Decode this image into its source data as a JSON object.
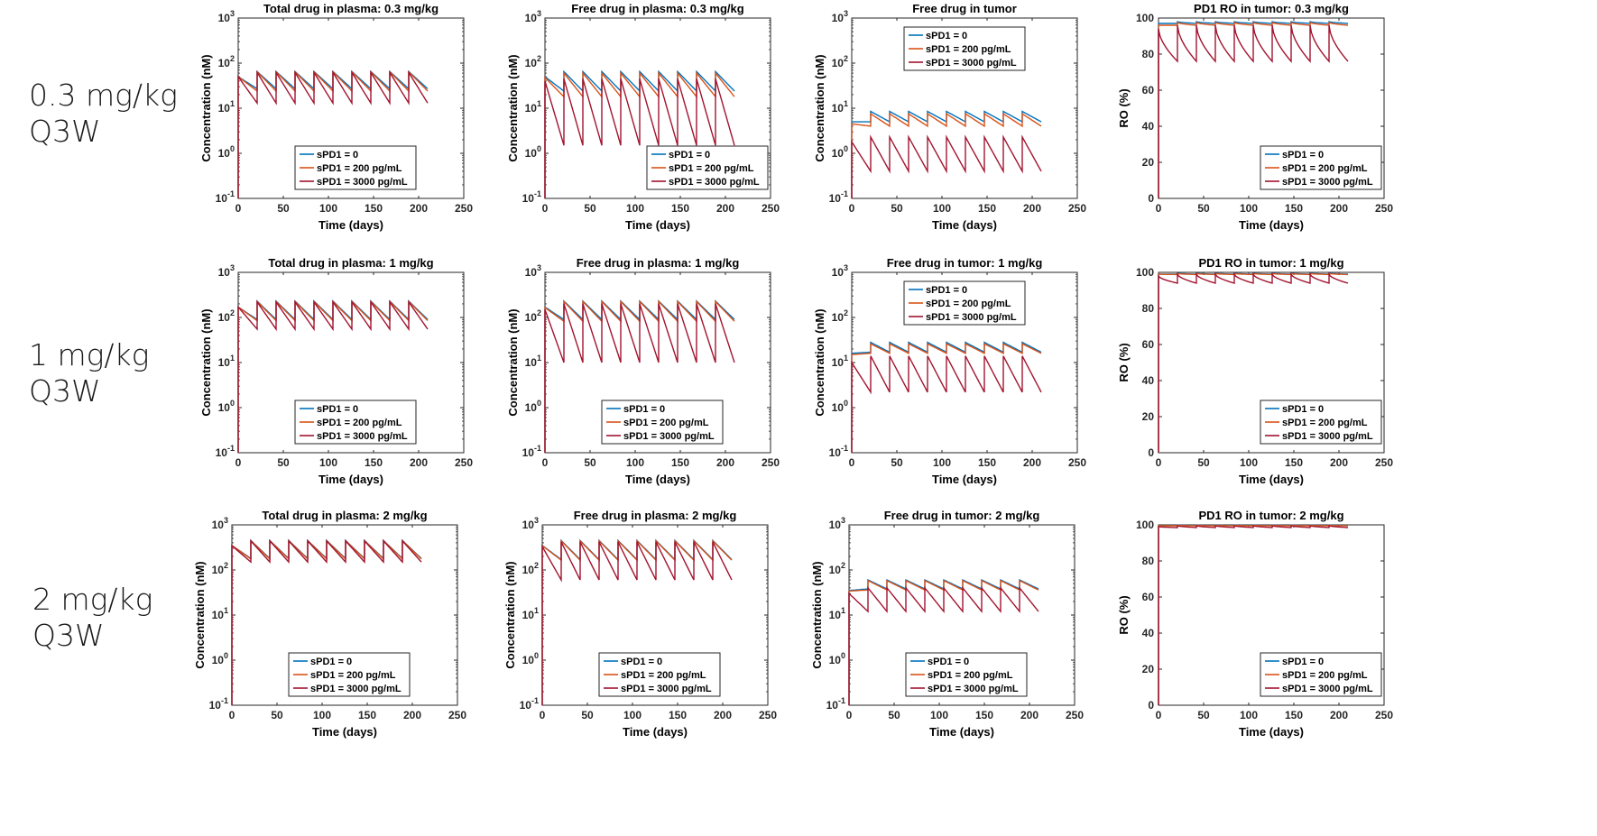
{
  "row_labels": [
    {
      "dose": "0.3 mg/kg",
      "schedule": "Q3W"
    },
    {
      "dose": "1 mg/kg",
      "schedule": "Q3W"
    },
    {
      "dose": "2 mg/kg",
      "schedule": "Q3W"
    }
  ],
  "colors": {
    "series0": "#0072BD",
    "series1": "#D95319",
    "series2": "#A2142F",
    "axis": "#262626"
  },
  "common": {
    "xlabel": "Time (days)",
    "xticks": [
      "0",
      "50",
      "100",
      "150",
      "200",
      "250"
    ],
    "conc_ylabel": "Concentration (nM)",
    "ro_ylabel": "RO (%)",
    "ro_yticks": [
      "0",
      "20",
      "40",
      "60",
      "80",
      "100"
    ],
    "log_ytick_base": "10",
    "log_ytick_exps": [
      "-1",
      "0",
      "1",
      "2",
      "3"
    ],
    "legend": [
      "sPD1 = 0",
      "sPD1 = 200 pg/mL",
      "sPD1 = 3000 pg/mL"
    ]
  },
  "chart_data": [
    {
      "type": "line",
      "title": "Total drug in plasma: 0.3 mg/kg",
      "xlabel": "Time (days)",
      "ylabel": "Concentration (nM)",
      "xlim": [
        0,
        250
      ],
      "ylim": [
        0.1,
        1000
      ],
      "yscale": "log",
      "legend_position": "lower-center",
      "dose_interval_days": 21,
      "end_day": 210,
      "series": [
        {
          "name": "sPD1 = 0",
          "peak": 65,
          "trough": 27,
          "first_peak": 50
        },
        {
          "name": "sPD1 = 200 pg/mL",
          "peak": 64,
          "trough": 24,
          "first_peak": 50
        },
        {
          "name": "sPD1 = 3000 pg/mL",
          "peak": 62,
          "trough": 13,
          "first_peak": 50
        }
      ]
    },
    {
      "type": "line",
      "title": "Free drug in plasma: 0.3 mg/kg",
      "xlabel": "Time (days)",
      "ylabel": "Concentration (nM)",
      "xlim": [
        0,
        250
      ],
      "ylim": [
        0.1,
        1000
      ],
      "yscale": "log",
      "legend_position": "lower-right",
      "dose_interval_days": 21,
      "end_day": 210,
      "series": [
        {
          "name": "sPD1 = 0",
          "peak": 65,
          "trough": 24,
          "first_peak": 50
        },
        {
          "name": "sPD1 = 200 pg/mL",
          "peak": 60,
          "trough": 18,
          "first_peak": 48
        },
        {
          "name": "sPD1 = 3000 pg/mL",
          "peak": 45,
          "trough": 1.5,
          "first_peak": 40
        }
      ]
    },
    {
      "type": "line",
      "title": "Free drug in tumor",
      "xlabel": "Time (days)",
      "ylabel": "Concentration (nM)",
      "xlim": [
        0,
        250
      ],
      "ylim": [
        0.1,
        1000
      ],
      "yscale": "log",
      "legend_position": "top-center",
      "dose_interval_days": 21,
      "end_day": 210,
      "series": [
        {
          "name": "sPD1 = 0",
          "peak": 8.5,
          "trough": 5,
          "first_peak": 5
        },
        {
          "name": "sPD1 = 200 pg/mL",
          "peak": 7.5,
          "trough": 4,
          "first_peak": 4.5
        },
        {
          "name": "sPD1 = 3000 pg/mL",
          "peak": 2.3,
          "trough": 0.4,
          "first_peak": 1.8
        }
      ]
    },
    {
      "type": "line",
      "title": "PD1 RO in tumor: 0.3 mg/kg",
      "xlabel": "Time (days)",
      "ylabel": "RO (%)",
      "xlim": [
        0,
        250
      ],
      "ylim": [
        0,
        100
      ],
      "yscale": "linear",
      "legend_position": "lower-right",
      "dose_interval_days": 21,
      "end_day": 210,
      "series": [
        {
          "name": "sPD1 = 0",
          "peak": 98,
          "trough": 97,
          "first_peak": 97
        },
        {
          "name": "sPD1 = 200 pg/mL",
          "peak": 97.5,
          "trough": 96,
          "first_peak": 96
        },
        {
          "name": "sPD1 = 3000 pg/mL",
          "peak": 96,
          "trough": 76,
          "first_peak": 94
        }
      ]
    },
    {
      "type": "line",
      "title": "Total drug in plasma: 1 mg/kg",
      "xlabel": "Time (days)",
      "ylabel": "Concentration (nM)",
      "xlim": [
        0,
        250
      ],
      "ylim": [
        0.1,
        1000
      ],
      "yscale": "log",
      "legend_position": "lower-center",
      "dose_interval_days": 21,
      "end_day": 210,
      "series": [
        {
          "name": "sPD1 = 0",
          "peak": 230,
          "trough": 90,
          "first_peak": 170
        },
        {
          "name": "sPD1 = 200 pg/mL",
          "peak": 225,
          "trough": 85,
          "first_peak": 170
        },
        {
          "name": "sPD1 = 3000 pg/mL",
          "peak": 220,
          "trough": 55,
          "first_peak": 170
        }
      ]
    },
    {
      "type": "line",
      "title": "Free drug in plasma: 1 mg/kg",
      "xlabel": "Time (days)",
      "ylabel": "Concentration (nM)",
      "xlim": [
        0,
        250
      ],
      "ylim": [
        0.1,
        1000
      ],
      "yscale": "log",
      "legend_position": "lower-center",
      "dose_interval_days": 21,
      "end_day": 210,
      "series": [
        {
          "name": "sPD1 = 0",
          "peak": 230,
          "trough": 90,
          "first_peak": 170
        },
        {
          "name": "sPD1 = 200 pg/mL",
          "peak": 225,
          "trough": 82,
          "first_peak": 165
        },
        {
          "name": "sPD1 = 3000 pg/mL",
          "peak": 200,
          "trough": 10,
          "first_peak": 150
        }
      ]
    },
    {
      "type": "line",
      "title": "Free drug in tumor: 1 mg/kg",
      "xlabel": "Time (days)",
      "ylabel": "Concentration (nM)",
      "xlim": [
        0,
        250
      ],
      "ylim": [
        0.1,
        1000
      ],
      "yscale": "log",
      "legend_position": "top-center",
      "dose_interval_days": 21,
      "end_day": 210,
      "series": [
        {
          "name": "sPD1 = 0",
          "peak": 28,
          "trough": 17,
          "first_peak": 16
        },
        {
          "name": "sPD1 = 200 pg/mL",
          "peak": 26,
          "trough": 16,
          "first_peak": 15
        },
        {
          "name": "sPD1 = 3000 pg/mL",
          "peak": 14,
          "trough": 2.2,
          "first_peak": 10
        }
      ]
    },
    {
      "type": "line",
      "title": "PD1 RO in tumor: 1 mg/kg",
      "xlabel": "Time (days)",
      "ylabel": "RO (%)",
      "xlim": [
        0,
        250
      ],
      "ylim": [
        0,
        100
      ],
      "yscale": "linear",
      "legend_position": "lower-right",
      "dose_interval_days": 21,
      "end_day": 210,
      "series": [
        {
          "name": "sPD1 = 0",
          "peak": 99.5,
          "trough": 99,
          "first_peak": 99
        },
        {
          "name": "sPD1 = 200 pg/mL",
          "peak": 99.3,
          "trough": 98.8,
          "first_peak": 99
        },
        {
          "name": "sPD1 = 3000 pg/mL",
          "peak": 99,
          "trough": 94,
          "first_peak": 98
        }
      ]
    },
    {
      "type": "line",
      "title": "Total drug in plasma: 2 mg/kg",
      "xlabel": "Time (days)",
      "ylabel": "Concentration (nM)",
      "xlim": [
        0,
        250
      ],
      "ylim": [
        0.1,
        1000
      ],
      "yscale": "log",
      "legend_position": "lower-center",
      "dose_interval_days": 21,
      "end_day": 210,
      "series": [
        {
          "name": "sPD1 = 0",
          "peak": 450,
          "trough": 180,
          "first_peak": 350
        },
        {
          "name": "sPD1 = 200 pg/mL",
          "peak": 445,
          "trough": 175,
          "first_peak": 350
        },
        {
          "name": "sPD1 = 3000 pg/mL",
          "peak": 440,
          "trough": 150,
          "first_peak": 345
        }
      ]
    },
    {
      "type": "line",
      "title": "Free drug in plasma: 2 mg/kg",
      "xlabel": "Time (days)",
      "ylabel": "Concentration (nM)",
      "xlim": [
        0,
        250
      ],
      "ylim": [
        0.1,
        1000
      ],
      "yscale": "log",
      "legend_position": "lower-center",
      "dose_interval_days": 21,
      "end_day": 210,
      "series": [
        {
          "name": "sPD1 = 0",
          "peak": 450,
          "trough": 170,
          "first_peak": 350
        },
        {
          "name": "sPD1 = 200 pg/mL",
          "peak": 440,
          "trough": 165,
          "first_peak": 345
        },
        {
          "name": "sPD1 = 3000 pg/mL",
          "peak": 420,
          "trough": 60,
          "first_peak": 330
        }
      ]
    },
    {
      "type": "line",
      "title": "Free drug in tumor: 2 mg/kg",
      "xlabel": "Time (days)",
      "ylabel": "Concentration (nM)",
      "xlim": [
        0,
        250
      ],
      "ylim": [
        0.1,
        1000
      ],
      "yscale": "log",
      "legend_position": "lower-center",
      "dose_interval_days": 21,
      "end_day": 210,
      "series": [
        {
          "name": "sPD1 = 0",
          "peak": 60,
          "trough": 38,
          "first_peak": 35
        },
        {
          "name": "sPD1 = 200 pg/mL",
          "peak": 58,
          "trough": 36,
          "first_peak": 34
        },
        {
          "name": "sPD1 = 3000 pg/mL",
          "peak": 40,
          "trough": 12,
          "first_peak": 30
        }
      ]
    },
    {
      "type": "line",
      "title": "PD1 RO in tumor: 2 mg/kg",
      "xlabel": "Time (days)",
      "ylabel": "RO (%)",
      "xlim": [
        0,
        250
      ],
      "ylim": [
        0,
        100
      ],
      "yscale": "linear",
      "legend_position": "lower-right",
      "dose_interval_days": 21,
      "end_day": 210,
      "series": [
        {
          "name": "sPD1 = 0",
          "peak": 99.8,
          "trough": 99.6,
          "first_peak": 99.5
        },
        {
          "name": "sPD1 = 200 pg/mL",
          "peak": 99.7,
          "trough": 99.5,
          "first_peak": 99.5
        },
        {
          "name": "sPD1 = 3000 pg/mL",
          "peak": 99.5,
          "trough": 98.5,
          "first_peak": 99
        }
      ]
    }
  ]
}
